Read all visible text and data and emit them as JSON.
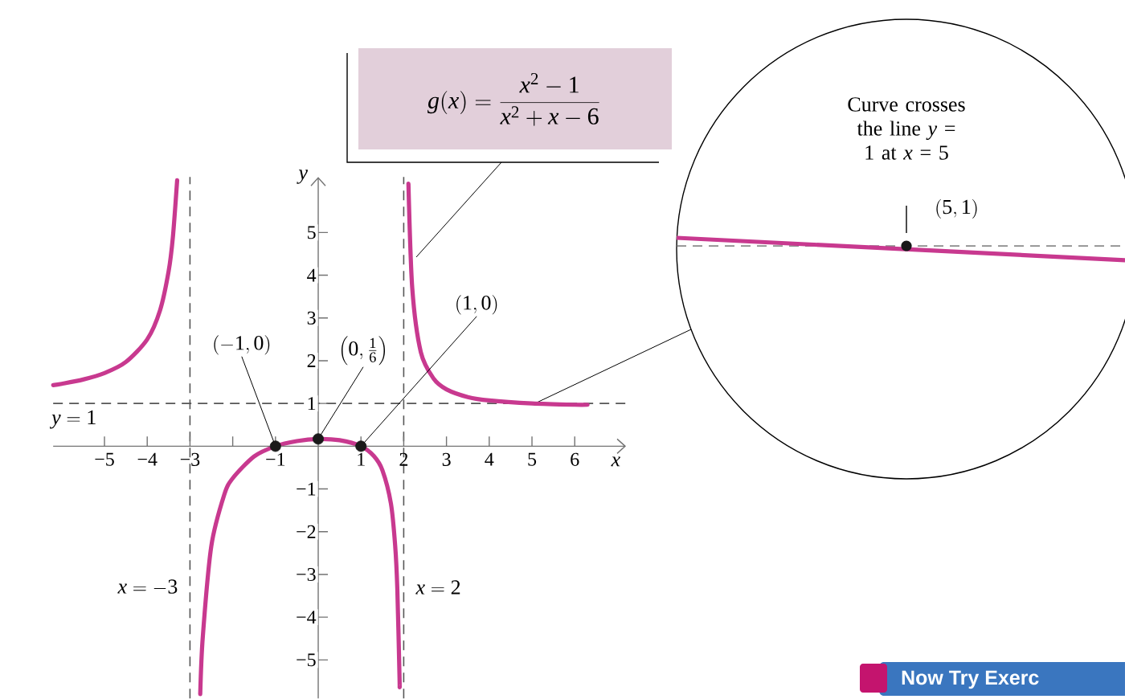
{
  "chart_data": {
    "type": "line",
    "xlabel": "x",
    "ylabel": "y",
    "xlim": [
      -6.2,
      7.2
    ],
    "ylim": [
      -5.9,
      6.3
    ],
    "xticks": [
      {
        "value": -5,
        "label": "−5"
      },
      {
        "value": -4,
        "label": "−4"
      },
      {
        "value": -3,
        "label": "−3"
      },
      {
        "value": -2,
        "label": null
      },
      {
        "value": -1,
        "label": "−1"
      },
      1,
      2,
      3,
      4,
      5,
      6
    ],
    "yticks": [
      {
        "value": -5,
        "label": "−5"
      },
      {
        "value": -4,
        "label": "−4"
      },
      {
        "value": -3,
        "label": "−3"
      },
      {
        "value": -2,
        "label": "−2"
      },
      {
        "value": -1,
        "label": "−1"
      },
      1,
      2,
      3,
      4,
      5
    ],
    "series": [
      {
        "color": "#c8398f",
        "x": [
          -6.2,
          -6,
          -5.5,
          -5,
          -4.5,
          -4,
          -3.7,
          -3.5,
          -3.4,
          -3.3
        ],
        "values": [
          1.43,
          1.46,
          1.56,
          1.71,
          1.97,
          2.5,
          3.18,
          4.09,
          4.89,
          6.22
        ]
      },
      {
        "color": "#c8398f",
        "x": [
          -2.76,
          -2.7,
          -2.5,
          -2.2,
          -2,
          -1.5,
          -1,
          -0.5,
          0,
          0.5,
          1,
          1.3,
          1.5,
          1.7,
          1.8,
          1.85,
          1.9,
          1.905
        ],
        "values": [
          -5.8,
          -4.46,
          -2.33,
          -1.14,
          -0.75,
          -0.24,
          0,
          0.12,
          0.17,
          0.14,
          0,
          -0.23,
          -0.56,
          -1.34,
          -2.33,
          -3.33,
          -5.33,
          -5.64
        ]
      },
      {
        "color": "#c8398f",
        "x": [
          2.11,
          2.2,
          2.4,
          2.7,
          3,
          3.5,
          4,
          5,
          6,
          6.3
        ],
        "values": [
          6.14,
          3.69,
          2.2,
          1.58,
          1.33,
          1.15,
          1.07,
          1,
          0.97,
          0.97
        ]
      },
      {
        "type": "scatter",
        "marker": "circle",
        "color": "#1a1a1a",
        "x": [
          -1,
          0,
          1
        ],
        "values": [
          0,
          0.17,
          0
        ]
      }
    ],
    "ref_lines": [
      {
        "axis": "x",
        "value": -3,
        "label": "x = -3",
        "line_style": "dashed"
      },
      {
        "axis": "x",
        "value": 2,
        "label": "x = 2",
        "line_style": "dashed"
      },
      {
        "axis": "y",
        "value": 1,
        "label": "y = 1",
        "line_style": "dashed"
      }
    ],
    "annotations": [
      "g(x) = \\frac{x^2 - 1}{x^2 + x - 6}",
      {
        "text": "(-1, 0)",
        "x": -1,
        "y": 0
      },
      {
        "text": "\\left(0, \\frac{1}{6}\\right)",
        "x": 0,
        "y": 0.17
      },
      {
        "text": "(1, 0)",
        "x": 1,
        "y": 0
      },
      "Now Try Exerc",
      "Curve crosses the line *y* = 1 at *x* = 5",
      "(5, 1)"
    ]
  }
}
